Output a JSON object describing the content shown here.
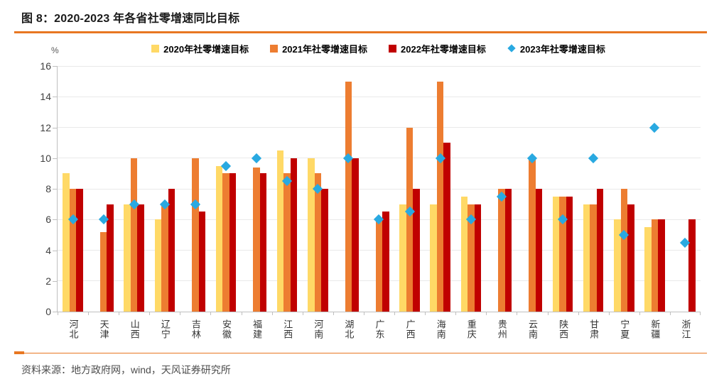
{
  "figure": {
    "title": "图 8：2020-2023 年各省社零增速同比目标",
    "source": "资料来源：地方政府网，wind，天风证券研究所",
    "accent_color": "#E87722"
  },
  "chart_data": {
    "type": "bar",
    "title": "图 8：2020-2023 年各省社零增速同比目标",
    "ylabel": "%",
    "ylim": [
      0,
      16
    ],
    "ytick_step": 2,
    "grid": true,
    "legend_position": "top",
    "categories": [
      "河北",
      "天津",
      "山西",
      "辽宁",
      "吉林",
      "安徽",
      "福建",
      "江西",
      "河南",
      "湖北",
      "广东",
      "广西",
      "海南",
      "重庆",
      "贵州",
      "云南",
      "陕西",
      "甘肃",
      "宁夏",
      "新疆",
      "浙江"
    ],
    "series": [
      {
        "name": "2020年社零增速目标",
        "type": "bar",
        "marker": "square",
        "color": "#FFD966",
        "values": [
          9,
          null,
          7,
          6,
          null,
          9.5,
          null,
          10.5,
          10,
          null,
          null,
          7,
          7,
          7.5,
          null,
          null,
          7.5,
          7,
          6,
          5.5,
          null
        ]
      },
      {
        "name": "2021年社零增速目标",
        "type": "bar",
        "marker": "square",
        "color": "#ED7D31",
        "values": [
          8,
          5.2,
          10,
          7,
          10,
          9,
          9.4,
          9,
          9,
          15,
          6,
          12,
          15,
          7,
          8,
          10,
          7.5,
          7,
          8,
          6,
          null
        ]
      },
      {
        "name": "2022年社零增速目标",
        "type": "bar",
        "marker": "square",
        "color": "#C00000",
        "values": [
          8,
          7,
          7,
          8,
          6.5,
          9,
          9,
          10,
          8,
          10,
          6.5,
          8,
          11,
          7,
          8,
          8,
          7.5,
          8,
          7,
          6,
          6
        ]
      },
      {
        "name": "2023年社零增速目标",
        "type": "scatter",
        "marker": "diamond",
        "color": "#29A9E1",
        "values": [
          6,
          6,
          7,
          7,
          7,
          9.5,
          10,
          8.5,
          8,
          10,
          6,
          6.5,
          10,
          6,
          7.5,
          10,
          6,
          10,
          5,
          12,
          4.5
        ]
      }
    ]
  }
}
